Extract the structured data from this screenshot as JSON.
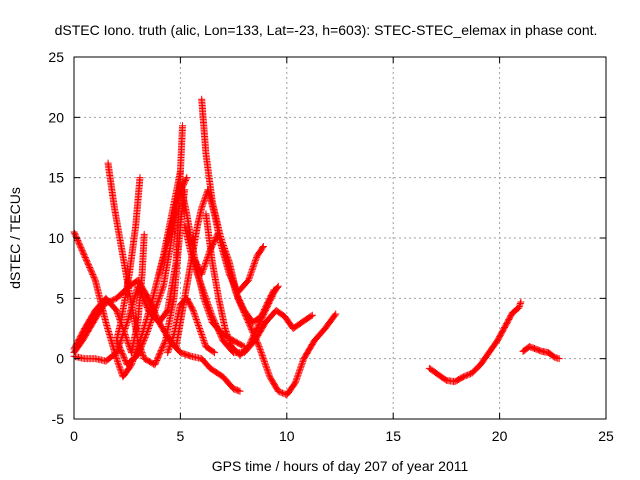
{
  "chart_data": {
    "type": "scatter",
    "title": "dSTEC Iono. truth (alic, Lon=133, Lat=-23, h=603): STEC-STEC_elemax in phase cont.",
    "xlabel": "GPS time / hours of day 207 of year 2011",
    "ylabel": "dSTEC  / TECUs",
    "xlim": [
      0,
      25
    ],
    "ylim": [
      -5,
      25
    ],
    "xticks": [
      0,
      5,
      10,
      15,
      20,
      25
    ],
    "yticks": [
      -5,
      0,
      5,
      10,
      15,
      20,
      25
    ],
    "grid": true,
    "marker": "plus",
    "color": "#ff0000",
    "series": [
      {
        "points": [
          [
            0.0,
            10.5
          ],
          [
            0.5,
            8.5
          ],
          [
            1.0,
            6.5
          ],
          [
            1.5,
            3.0
          ],
          [
            2.0,
            0.0
          ],
          [
            2.3,
            -1.5
          ],
          [
            2.7,
            -0.5
          ],
          [
            3.2,
            2.0
          ],
          [
            3.7,
            5.0
          ],
          [
            4.2,
            8.5
          ],
          [
            4.6,
            12.0
          ],
          [
            5.0,
            15.5
          ]
        ]
      },
      {
        "points": [
          [
            0.0,
            0.5
          ],
          [
            0.4,
            1.5
          ],
          [
            0.9,
            3.0
          ],
          [
            1.4,
            4.5
          ],
          [
            2.0,
            5.0
          ],
          [
            2.6,
            6.0
          ],
          [
            3.0,
            6.5
          ],
          [
            3.5,
            5.0
          ],
          [
            4.0,
            3.0
          ],
          [
            4.5,
            1.5
          ],
          [
            5.0,
            0.5
          ],
          [
            5.5,
            0.2
          ],
          [
            6.0,
            0.0
          ],
          [
            6.4,
            -0.8
          ],
          [
            7.0,
            -1.5
          ],
          [
            7.5,
            -2.5
          ],
          [
            7.8,
            -2.7
          ]
        ]
      },
      {
        "points": [
          [
            0.0,
            0.2
          ],
          [
            0.5,
            0.0
          ],
          [
            1.0,
            0.0
          ],
          [
            1.5,
            -0.2
          ],
          [
            2.0,
            0.5
          ],
          [
            2.5,
            3.0
          ],
          [
            3.0,
            6.0
          ],
          [
            3.5,
            4.0
          ],
          [
            4.0,
            3.0
          ],
          [
            4.4,
            4.0
          ],
          [
            4.8,
            8.0
          ],
          [
            5.1,
            19.3
          ]
        ]
      },
      {
        "points": [
          [
            1.6,
            16.2
          ],
          [
            1.9,
            12.5
          ],
          [
            2.3,
            8.5
          ],
          [
            2.7,
            4.5
          ],
          [
            3.0,
            1.5
          ],
          [
            3.3,
            0.0
          ],
          [
            3.8,
            -0.5
          ],
          [
            4.3,
            1.5
          ],
          [
            4.7,
            5.0
          ],
          [
            5.0,
            11.0
          ],
          [
            5.2,
            14.0
          ]
        ]
      },
      {
        "points": [
          [
            3.1,
            15.0
          ],
          [
            2.9,
            11.0
          ],
          [
            2.6,
            7.0
          ],
          [
            2.2,
            3.0
          ],
          [
            2.0,
            1.5
          ],
          [
            2.5,
            -0.5
          ],
          [
            3.0,
            0.3
          ],
          [
            3.4,
            2.0
          ],
          [
            3.8,
            4.0
          ],
          [
            4.2,
            6.0
          ],
          [
            4.5,
            9.0
          ],
          [
            4.9,
            13.5
          ],
          [
            5.3,
            15.0
          ]
        ]
      },
      {
        "points": [
          [
            0.0,
            0.8
          ],
          [
            0.5,
            2.5
          ],
          [
            1.0,
            4.0
          ],
          [
            1.5,
            5.0
          ],
          [
            2.0,
            4.0
          ],
          [
            2.4,
            2.0
          ],
          [
            2.7,
            0.5
          ],
          [
            3.0,
            3.0
          ],
          [
            3.2,
            7.0
          ],
          [
            3.3,
            10.3
          ]
        ]
      },
      {
        "points": [
          [
            6.0,
            21.5
          ],
          [
            6.2,
            17.0
          ],
          [
            6.5,
            13.0
          ],
          [
            6.9,
            10.0
          ],
          [
            7.3,
            8.0
          ],
          [
            7.7,
            5.0
          ],
          [
            8.2,
            3.0
          ],
          [
            8.7,
            1.0
          ],
          [
            9.2,
            -1.5
          ],
          [
            9.6,
            -2.7
          ],
          [
            10.0,
            -3.0
          ],
          [
            10.4,
            -2.0
          ],
          [
            10.8,
            0.0
          ],
          [
            11.3,
            1.5
          ],
          [
            11.8,
            2.5
          ],
          [
            12.3,
            3.7
          ]
        ]
      },
      {
        "points": [
          [
            5.2,
            11.0
          ],
          [
            5.6,
            8.0
          ],
          [
            6.0,
            6.0
          ],
          [
            6.5,
            3.5
          ],
          [
            7.0,
            1.5
          ],
          [
            7.5,
            0.5
          ],
          [
            8.0,
            0.5
          ],
          [
            8.5,
            1.5
          ],
          [
            9.0,
            3.0
          ],
          [
            9.5,
            4.0
          ],
          [
            9.9,
            3.5
          ],
          [
            10.3,
            2.5
          ],
          [
            10.7,
            3.0
          ],
          [
            11.2,
            3.6
          ]
        ]
      },
      {
        "points": [
          [
            6.2,
            12.0
          ],
          [
            6.5,
            8.0
          ],
          [
            6.8,
            5.0
          ],
          [
            7.1,
            2.5
          ],
          [
            7.4,
            1.0
          ],
          [
            7.8,
            0.3
          ],
          [
            8.2,
            1.0
          ],
          [
            8.6,
            2.5
          ],
          [
            9.0,
            4.0
          ],
          [
            9.4,
            5.5
          ],
          [
            9.6,
            6.0
          ]
        ]
      },
      {
        "points": [
          [
            5.6,
            8.5
          ],
          [
            6.0,
            7.0
          ],
          [
            6.4,
            9.0
          ],
          [
            6.8,
            10.5
          ],
          [
            7.2,
            8.0
          ],
          [
            7.6,
            5.5
          ],
          [
            8.0,
            4.0
          ],
          [
            8.4,
            3.0
          ],
          [
            8.8,
            3.5
          ],
          [
            9.2,
            5.0
          ],
          [
            9.4,
            5.7
          ]
        ]
      },
      {
        "points": [
          [
            4.8,
            1.0
          ],
          [
            5.0,
            3.0
          ],
          [
            5.2,
            5.0
          ],
          [
            5.4,
            7.0
          ],
          [
            5.6,
            9.0
          ],
          [
            5.8,
            11.0
          ],
          [
            6.0,
            12.5
          ],
          [
            6.3,
            14.0
          ],
          [
            6.6,
            12.0
          ],
          [
            6.9,
            9.5
          ],
          [
            7.3,
            7.0
          ],
          [
            7.7,
            5.5
          ],
          [
            8.2,
            6.5
          ],
          [
            8.6,
            8.5
          ],
          [
            8.9,
            9.3
          ]
        ]
      },
      {
        "points": [
          [
            4.0,
            7.0
          ],
          [
            4.4,
            9.5
          ],
          [
            4.7,
            12.0
          ],
          [
            5.0,
            14.5
          ],
          [
            5.3,
            12.0
          ],
          [
            5.7,
            8.0
          ],
          [
            6.1,
            5.0
          ],
          [
            6.5,
            3.0
          ],
          [
            7.0,
            2.0
          ],
          [
            7.5,
            1.5
          ],
          [
            8.0,
            1.0
          ]
        ]
      },
      {
        "points": [
          [
            4.4,
            0.5
          ],
          [
            4.7,
            2.0
          ],
          [
            5.0,
            4.5
          ],
          [
            5.3,
            5.0
          ],
          [
            5.6,
            4.0
          ],
          [
            5.9,
            2.5
          ],
          [
            6.2,
            1.0
          ],
          [
            6.6,
            0.5
          ]
        ]
      },
      {
        "points": [
          [
            16.7,
            -0.8
          ],
          [
            17.1,
            -1.3
          ],
          [
            17.5,
            -1.8
          ],
          [
            17.9,
            -1.9
          ],
          [
            18.3,
            -1.5
          ],
          [
            18.7,
            -1.2
          ],
          [
            19.1,
            -0.5
          ],
          [
            19.5,
            0.5
          ],
          [
            19.9,
            1.5
          ],
          [
            20.3,
            2.8
          ],
          [
            20.6,
            3.8
          ],
          [
            20.9,
            4.2
          ],
          [
            21.0,
            4.7
          ]
        ]
      },
      {
        "points": [
          [
            21.1,
            0.6
          ],
          [
            21.4,
            1.0
          ],
          [
            21.7,
            0.8
          ],
          [
            22.0,
            0.6
          ],
          [
            22.3,
            0.5
          ],
          [
            22.6,
            0.1
          ],
          [
            22.8,
            0.0
          ]
        ]
      }
    ]
  }
}
